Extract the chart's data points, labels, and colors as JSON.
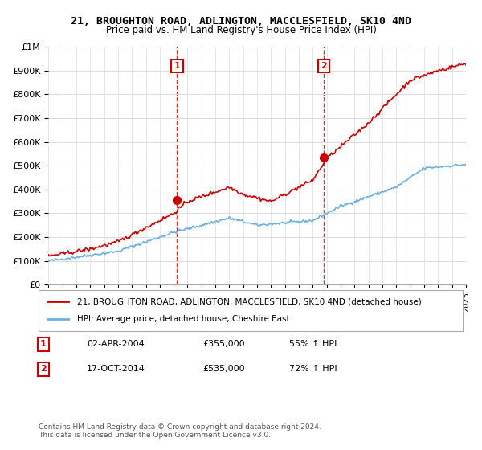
{
  "title": "21, BROUGHTON ROAD, ADLINGTON, MACCLESFIELD, SK10 4ND",
  "subtitle": "Price paid vs. HM Land Registry's House Price Index (HPI)",
  "legend_line1": "21, BROUGHTON ROAD, ADLINGTON, MACCLESFIELD, SK10 4ND (detached house)",
  "legend_line2": "HPI: Average price, detached house, Cheshire East",
  "annotation1_label": "1",
  "annotation1_date": "02-APR-2004",
  "annotation1_price": "£355,000",
  "annotation1_hpi": "55% ↑ HPI",
  "annotation2_label": "2",
  "annotation2_date": "17-OCT-2014",
  "annotation2_price": "£535,000",
  "annotation2_hpi": "72% ↑ HPI",
  "footer": "Contains HM Land Registry data © Crown copyright and database right 2024.\nThis data is licensed under the Open Government Licence v3.0.",
  "hpi_color": "#6ab0e0",
  "price_color": "#cc0000",
  "marker_color": "#cc0000",
  "dashed_line_color": "#cc0000",
  "annotation_box_color": "#cc0000",
  "ylim_min": 0,
  "ylim_max": 1000000,
  "x_start_year": 1995,
  "x_end_year": 2025,
  "sale1_year": 2004.25,
  "sale1_value": 355000,
  "sale2_year": 2014.79,
  "sale2_value": 535000
}
